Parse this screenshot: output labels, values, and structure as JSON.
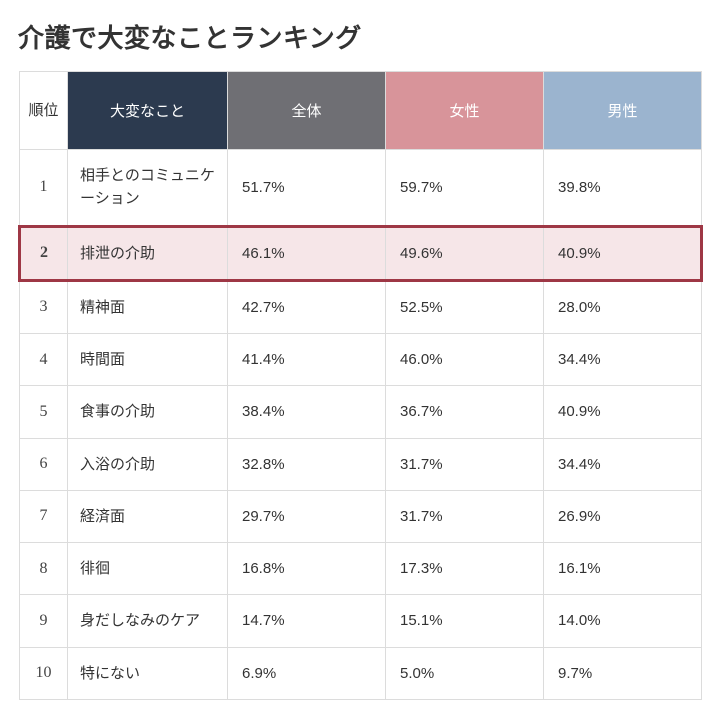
{
  "title": "介護で大変なことランキング",
  "table": {
    "columns": {
      "rank": "順位",
      "item": "大変なこと",
      "all": "全体",
      "female": "女性",
      "male": "男性"
    },
    "header_colors": {
      "rank_bg": "#ffffff",
      "rank_fg": "#333333",
      "item_bg": "#2c3a4f",
      "all_bg": "#6f6f74",
      "female_bg": "#d8949a",
      "male_bg": "#9bb4cf"
    },
    "highlight": {
      "row_index": 1,
      "border_color": "#9e3745",
      "bg_color": "#f6e6e8"
    },
    "border_color": "#dcdcdc",
    "text_color": "#333333",
    "rows": [
      {
        "rank": "1",
        "item": "相手とのコミュニケーション",
        "all": "51.7%",
        "female": "59.7%",
        "male": "39.8%"
      },
      {
        "rank": "2",
        "item": "排泄の介助",
        "all": "46.1%",
        "female": "49.6%",
        "male": "40.9%"
      },
      {
        "rank": "3",
        "item": "精神面",
        "all": "42.7%",
        "female": "52.5%",
        "male": "28.0%"
      },
      {
        "rank": "4",
        "item": "時間面",
        "all": "41.4%",
        "female": "46.0%",
        "male": "34.4%"
      },
      {
        "rank": "5",
        "item": "食事の介助",
        "all": "38.4%",
        "female": "36.7%",
        "male": "40.9%"
      },
      {
        "rank": "6",
        "item": "入浴の介助",
        "all": "32.8%",
        "female": "31.7%",
        "male": "34.4%"
      },
      {
        "rank": "7",
        "item": "経済面",
        "all": "29.7%",
        "female": "31.7%",
        "male": "26.9%"
      },
      {
        "rank": "8",
        "item": "徘徊",
        "all": "16.8%",
        "female": "17.3%",
        "male": "16.1%"
      },
      {
        "rank": "9",
        "item": "身だしなみのケア",
        "all": "14.7%",
        "female": "15.1%",
        "male": "14.0%"
      },
      {
        "rank": "10",
        "item": "特にない",
        "all": "6.9%",
        "female": "5.0%",
        "male": "9.7%"
      }
    ]
  }
}
